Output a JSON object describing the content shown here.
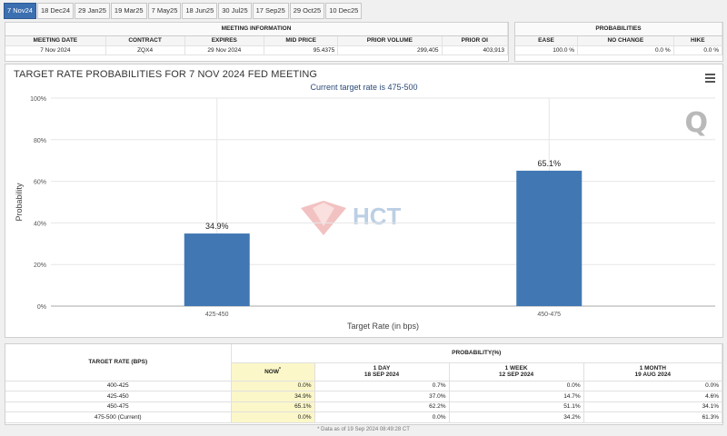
{
  "tabs": [
    "7 Nov24",
    "18 Dec24",
    "29 Jan25",
    "19 Mar25",
    "7 May25",
    "18 Jun25",
    "30 Jul25",
    "17 Sep25",
    "29 Oct25",
    "10 Dec25"
  ],
  "active_tab": 0,
  "meeting_info": {
    "title": "MEETING INFORMATION",
    "headers": [
      "MEETING DATE",
      "CONTRACT",
      "EXPIRES",
      "MID PRICE",
      "PRIOR VOLUME",
      "PRIOR OI"
    ],
    "values": [
      "7 Nov 2024",
      "ZQX4",
      "29 Nov 2024",
      "95.4375",
      "299,405",
      "403,913"
    ]
  },
  "probabilities": {
    "title": "PROBABILITIES",
    "headers": [
      "EASE",
      "NO CHANGE",
      "HIKE"
    ],
    "values": [
      "100.0 %",
      "0.0 %",
      "0.0 %"
    ]
  },
  "chart_data": {
    "type": "bar",
    "title": "TARGET RATE PROBABILITIES FOR 7 NOV 2024 FED MEETING",
    "subtitle": "Current target rate is 475-500",
    "categories": [
      "425-450",
      "450-475"
    ],
    "values": [
      34.9,
      65.1
    ],
    "data_labels": [
      "34.9%",
      "65.1%"
    ],
    "xlabel": "Target Rate (in bps)",
    "ylabel": "Probability",
    "ylim": [
      0,
      100
    ],
    "yticks": [
      "0%",
      "20%",
      "40%",
      "60%",
      "80%",
      "100%"
    ],
    "color": "#4178b3",
    "grid": true
  },
  "table": {
    "col_rate": "TARGET RATE (BPS)",
    "col_prob": "PROBABILITY(%)",
    "subcols": [
      {
        "label": "NOW",
        "mark": "*",
        "date": ""
      },
      {
        "label": "1 DAY",
        "date": "18 SEP 2024"
      },
      {
        "label": "1 WEEK",
        "date": "12 SEP 2024"
      },
      {
        "label": "1 MONTH",
        "date": "19 AUG 2024"
      }
    ],
    "rows": [
      {
        "rate": "400-425",
        "now": "0.0%",
        "day": "0.7%",
        "week": "0.0%",
        "month": "0.0%"
      },
      {
        "rate": "425-450",
        "now": "34.9%",
        "day": "37.0%",
        "week": "14.7%",
        "month": "4.6%"
      },
      {
        "rate": "450-475",
        "now": "65.1%",
        "day": "62.2%",
        "week": "51.1%",
        "month": "34.1%"
      },
      {
        "rate": "475-500 (Current)",
        "now": "0.0%",
        "day": "0.0%",
        "week": "34.2%",
        "month": "61.3%"
      }
    ],
    "footnote": "* Data as of 19 Sep 2024 08:49:28 CT"
  },
  "watermark": {
    "brand": "HCT"
  },
  "icons": {
    "menu": "hamburger-menu-icon",
    "logo": "q-logo-icon"
  }
}
